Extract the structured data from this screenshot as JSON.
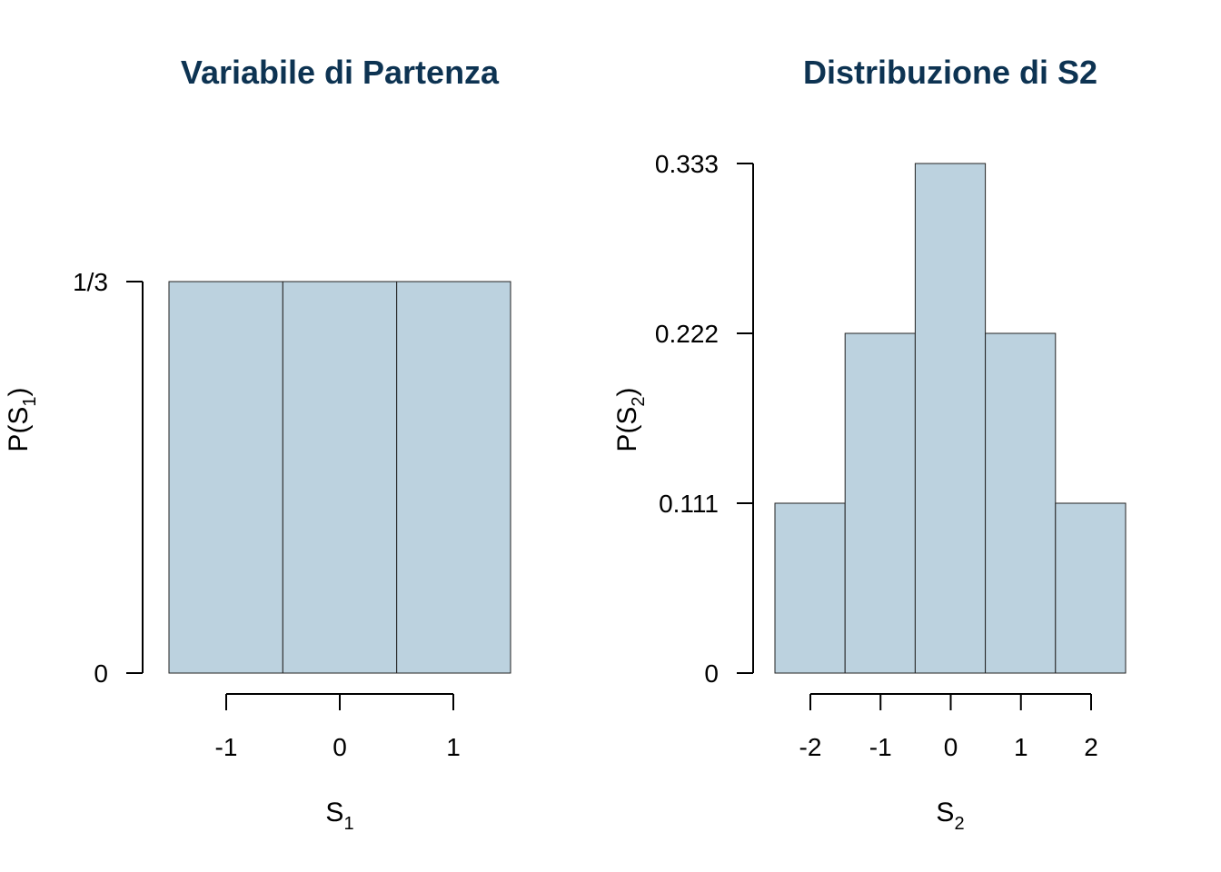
{
  "colors": {
    "title": "#0d3352",
    "bar_fill": "#bcd2df",
    "bar_stroke": "#222222",
    "axis": "#000000"
  },
  "chart_data": [
    {
      "type": "bar",
      "title": "Variabile di Partenza",
      "categories": [
        "-1",
        "0",
        "1"
      ],
      "x": [
        -1,
        0,
        1
      ],
      "values": [
        0.3333,
        0.3333,
        0.3333
      ],
      "ylim": [
        0,
        0.3333
      ],
      "yticks": [
        0,
        0.3333
      ],
      "yticklabels": [
        "0",
        "1/3"
      ],
      "xlabel": {
        "main": "S",
        "sub": "1"
      },
      "ylabel": {
        "prefix": "P(",
        "main": "S",
        "sub": "1",
        "suffix": ")"
      },
      "grid": false,
      "legend": "none"
    },
    {
      "type": "bar",
      "title": "Distribuzione di S2",
      "categories": [
        "-2",
        "-1",
        "0",
        "1",
        "2"
      ],
      "x": [
        -2,
        -1,
        0,
        1,
        2
      ],
      "values": [
        0.111,
        0.222,
        0.333,
        0.222,
        0.111
      ],
      "ylim": [
        0,
        0.333
      ],
      "yticks": [
        0,
        0.111,
        0.222,
        0.333
      ],
      "yticklabels": [
        "0",
        "0.111",
        "0.222",
        "0.333"
      ],
      "xlabel": {
        "main": "S",
        "sub": "2"
      },
      "ylabel": {
        "prefix": "P(",
        "main": "S",
        "sub": "2",
        "suffix": ")"
      },
      "grid": false,
      "legend": "none"
    }
  ]
}
